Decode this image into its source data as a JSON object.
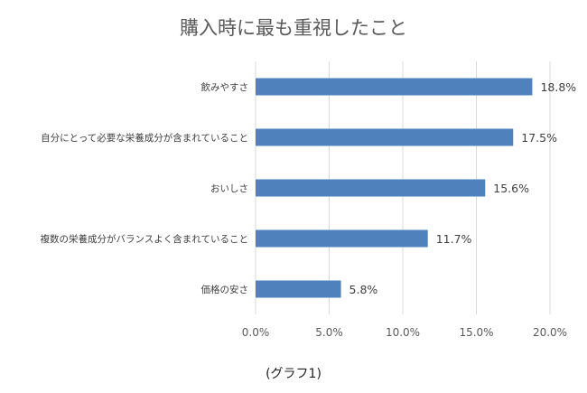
{
  "chart_data": {
    "type": "bar",
    "orientation": "horizontal",
    "title": "購入時に最も重視したこと",
    "caption": "(グラフ1)",
    "categories": [
      "飲みやすさ",
      "自分にとって必要な栄養成分が含まれていること",
      "おいしさ",
      "複数の栄養成分がバランスよく含まれていること",
      "価格の安さ"
    ],
    "values": [
      18.8,
      17.5,
      15.6,
      11.7,
      5.8
    ],
    "data_labels": [
      "18.8%",
      "17.5%",
      "15.6%",
      "11.7%",
      "5.8%"
    ],
    "xlim": [
      0,
      20
    ],
    "xticks": [
      "0.0%",
      "5.0%",
      "10.0%",
      "15.0%",
      "20.0%"
    ],
    "grid": "vertical",
    "bar_color": "#4F81BD"
  }
}
